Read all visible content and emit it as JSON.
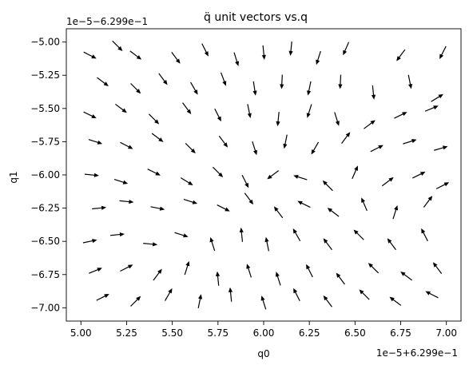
{
  "chart_data": {
    "type": "quiver",
    "title": "q̈ unit vectors vs.q",
    "xlabel": "q0",
    "ylabel": "q1",
    "x_offset_text": "1e−5+6.299e−1",
    "y_offset_text": "1e−5−6.299e−1",
    "xlim": [
      4.92,
      7.08
    ],
    "ylim": [
      -7.1,
      -4.9
    ],
    "x_ticks": [
      5.0,
      5.25,
      5.5,
      5.75,
      6.0,
      6.25,
      6.5,
      6.75,
      7.0
    ],
    "x_tick_labels": [
      "5.00",
      "5.25",
      "5.50",
      "5.75",
      "6.00",
      "6.25",
      "6.50",
      "6.75",
      "7.00"
    ],
    "y_ticks": [
      -5.0,
      -5.25,
      -5.5,
      -5.75,
      -6.0,
      -6.25,
      -6.5,
      -6.75,
      -7.0
    ],
    "y_tick_labels": [
      "−5.00",
      "−5.25",
      "−5.50",
      "−5.75",
      "−6.00",
      "−6.25",
      "−6.50",
      "−6.75",
      "−7.00"
    ],
    "grid": false,
    "legend": "none",
    "arrow_color": "#000000",
    "arrows": [
      {
        "x": 5.05,
        "y": -5.1,
        "u": 0.89,
        "v": -0.45
      },
      {
        "x": 5.2,
        "y": -5.03,
        "u": 0.71,
        "v": -0.71
      },
      {
        "x": 5.3,
        "y": -5.1,
        "u": 0.8,
        "v": -0.6
      },
      {
        "x": 5.52,
        "y": -5.12,
        "u": 0.6,
        "v": -0.8
      },
      {
        "x": 5.68,
        "y": -5.06,
        "u": 0.45,
        "v": -0.89
      },
      {
        "x": 5.85,
        "y": -5.13,
        "u": 0.3,
        "v": -0.95
      },
      {
        "x": 6.0,
        "y": -5.08,
        "u": 0.1,
        "v": -0.99
      },
      {
        "x": 6.15,
        "y": -5.05,
        "u": -0.1,
        "v": -0.99
      },
      {
        "x": 6.3,
        "y": -5.12,
        "u": -0.3,
        "v": -0.95
      },
      {
        "x": 6.45,
        "y": -5.05,
        "u": -0.4,
        "v": -0.92
      },
      {
        "x": 6.75,
        "y": -5.1,
        "u": -0.6,
        "v": -0.8
      },
      {
        "x": 6.98,
        "y": -5.08,
        "u": -0.45,
        "v": -0.89
      },
      {
        "x": 5.12,
        "y": -5.3,
        "u": 0.8,
        "v": -0.6
      },
      {
        "x": 5.3,
        "y": -5.35,
        "u": 0.71,
        "v": -0.71
      },
      {
        "x": 5.45,
        "y": -5.28,
        "u": 0.6,
        "v": -0.8
      },
      {
        "x": 5.62,
        "y": -5.35,
        "u": 0.5,
        "v": -0.87
      },
      {
        "x": 5.78,
        "y": -5.28,
        "u": 0.35,
        "v": -0.94
      },
      {
        "x": 5.95,
        "y": -5.35,
        "u": 0.15,
        "v": -0.99
      },
      {
        "x": 6.1,
        "y": -5.3,
        "u": -0.05,
        "v": -1.0
      },
      {
        "x": 6.25,
        "y": -5.35,
        "u": -0.2,
        "v": -0.98
      },
      {
        "x": 6.42,
        "y": -5.3,
        "u": -0.05,
        "v": -1.0
      },
      {
        "x": 6.6,
        "y": -5.38,
        "u": 0.1,
        "v": -0.99
      },
      {
        "x": 6.8,
        "y": -5.3,
        "u": 0.2,
        "v": -0.98
      },
      {
        "x": 6.95,
        "y": -5.42,
        "u": 0.85,
        "v": 0.52
      },
      {
        "x": 5.05,
        "y": -5.55,
        "u": 0.9,
        "v": -0.44
      },
      {
        "x": 5.22,
        "y": -5.5,
        "u": 0.8,
        "v": -0.6
      },
      {
        "x": 5.4,
        "y": -5.58,
        "u": 0.71,
        "v": -0.71
      },
      {
        "x": 5.58,
        "y": -5.5,
        "u": 0.6,
        "v": -0.8
      },
      {
        "x": 5.75,
        "y": -5.55,
        "u": 0.45,
        "v": -0.89
      },
      {
        "x": 5.92,
        "y": -5.52,
        "u": 0.2,
        "v": -0.98
      },
      {
        "x": 6.08,
        "y": -5.58,
        "u": -0.1,
        "v": -0.99
      },
      {
        "x": 6.25,
        "y": -5.52,
        "u": -0.3,
        "v": -0.95
      },
      {
        "x": 6.4,
        "y": -5.58,
        "u": 0.3,
        "v": -0.95
      },
      {
        "x": 6.58,
        "y": -5.62,
        "u": 0.8,
        "v": 0.6
      },
      {
        "x": 6.75,
        "y": -5.55,
        "u": 0.9,
        "v": 0.44
      },
      {
        "x": 6.92,
        "y": -5.5,
        "u": 0.92,
        "v": 0.38
      },
      {
        "x": 5.08,
        "y": -5.75,
        "u": 0.95,
        "v": -0.3
      },
      {
        "x": 5.25,
        "y": -5.78,
        "u": 0.89,
        "v": -0.45
      },
      {
        "x": 5.42,
        "y": -5.72,
        "u": 0.8,
        "v": -0.6
      },
      {
        "x": 5.6,
        "y": -5.8,
        "u": 0.71,
        "v": -0.71
      },
      {
        "x": 5.78,
        "y": -5.75,
        "u": 0.6,
        "v": -0.8
      },
      {
        "x": 5.95,
        "y": -5.8,
        "u": 0.3,
        "v": -0.95
      },
      {
        "x": 6.12,
        "y": -5.75,
        "u": -0.2,
        "v": -0.98
      },
      {
        "x": 6.28,
        "y": -5.8,
        "u": -0.5,
        "v": -0.87
      },
      {
        "x": 6.45,
        "y": -5.72,
        "u": 0.6,
        "v": 0.8
      },
      {
        "x": 6.62,
        "y": -5.8,
        "u": 0.89,
        "v": 0.45
      },
      {
        "x": 6.8,
        "y": -5.75,
        "u": 0.95,
        "v": 0.3
      },
      {
        "x": 6.97,
        "y": -5.8,
        "u": 0.96,
        "v": 0.28
      },
      {
        "x": 5.06,
        "y": -6.0,
        "u": 0.99,
        "v": -0.1
      },
      {
        "x": 5.22,
        "y": -6.05,
        "u": 0.95,
        "v": -0.3
      },
      {
        "x": 5.4,
        "y": -5.98,
        "u": 0.9,
        "v": -0.44
      },
      {
        "x": 5.58,
        "y": -6.05,
        "u": 0.85,
        "v": -0.52
      },
      {
        "x": 5.75,
        "y": -5.98,
        "u": 0.71,
        "v": -0.71
      },
      {
        "x": 5.9,
        "y": -6.05,
        "u": 0.45,
        "v": -0.89
      },
      {
        "x": 6.05,
        "y": -6.0,
        "u": -0.8,
        "v": -0.6
      },
      {
        "x": 6.2,
        "y": -6.02,
        "u": -0.95,
        "v": 0.3
      },
      {
        "x": 6.35,
        "y": -6.08,
        "u": -0.7,
        "v": 0.71
      },
      {
        "x": 6.5,
        "y": -5.98,
        "u": 0.4,
        "v": 0.92
      },
      {
        "x": 6.68,
        "y": -6.05,
        "u": 0.8,
        "v": 0.6
      },
      {
        "x": 6.85,
        "y": -6.0,
        "u": 0.9,
        "v": 0.44
      },
      {
        "x": 6.98,
        "y": -6.08,
        "u": 0.89,
        "v": 0.45
      },
      {
        "x": 5.1,
        "y": -6.25,
        "u": 0.99,
        "v": 0.1
      },
      {
        "x": 5.25,
        "y": -6.2,
        "u": 0.99,
        "v": -0.1
      },
      {
        "x": 5.42,
        "y": -6.25,
        "u": 0.98,
        "v": -0.2
      },
      {
        "x": 5.6,
        "y": -6.2,
        "u": 0.95,
        "v": -0.3
      },
      {
        "x": 5.78,
        "y": -6.25,
        "u": 0.89,
        "v": -0.45
      },
      {
        "x": 5.92,
        "y": -6.18,
        "u": 0.6,
        "v": -0.8
      },
      {
        "x": 6.08,
        "y": -6.28,
        "u": -0.6,
        "v": 0.8
      },
      {
        "x": 6.22,
        "y": -6.22,
        "u": -0.9,
        "v": 0.44
      },
      {
        "x": 6.38,
        "y": -6.28,
        "u": -0.8,
        "v": 0.6
      },
      {
        "x": 6.55,
        "y": -6.22,
        "u": -0.4,
        "v": 0.92
      },
      {
        "x": 6.72,
        "y": -6.28,
        "u": 0.3,
        "v": 0.95
      },
      {
        "x": 6.9,
        "y": -6.2,
        "u": 0.6,
        "v": 0.8
      },
      {
        "x": 5.05,
        "y": -6.5,
        "u": 0.98,
        "v": 0.2
      },
      {
        "x": 5.2,
        "y": -6.45,
        "u": 0.99,
        "v": 0.1
      },
      {
        "x": 5.38,
        "y": -6.52,
        "u": 0.99,
        "v": -0.1
      },
      {
        "x": 5.55,
        "y": -6.45,
        "u": 0.95,
        "v": -0.3
      },
      {
        "x": 5.72,
        "y": -6.52,
        "u": -0.3,
        "v": 0.95
      },
      {
        "x": 5.88,
        "y": -6.45,
        "u": -0.1,
        "v": 0.99
      },
      {
        "x": 6.02,
        "y": -6.52,
        "u": -0.2,
        "v": 0.98
      },
      {
        "x": 6.18,
        "y": -6.45,
        "u": -0.5,
        "v": 0.87
      },
      {
        "x": 6.35,
        "y": -6.52,
        "u": -0.6,
        "v": 0.8
      },
      {
        "x": 6.52,
        "y": -6.45,
        "u": -0.71,
        "v": 0.71
      },
      {
        "x": 6.7,
        "y": -6.52,
        "u": -0.6,
        "v": 0.8
      },
      {
        "x": 6.88,
        "y": -6.45,
        "u": -0.45,
        "v": 0.89
      },
      {
        "x": 5.08,
        "y": -6.72,
        "u": 0.92,
        "v": 0.38
      },
      {
        "x": 5.25,
        "y": -6.7,
        "u": 0.89,
        "v": 0.45
      },
      {
        "x": 5.42,
        "y": -6.75,
        "u": 0.6,
        "v": 0.8
      },
      {
        "x": 5.58,
        "y": -6.7,
        "u": 0.3,
        "v": 0.95
      },
      {
        "x": 5.75,
        "y": -6.78,
        "u": -0.1,
        "v": 0.99
      },
      {
        "x": 5.92,
        "y": -6.72,
        "u": -0.3,
        "v": 0.95
      },
      {
        "x": 6.08,
        "y": -6.78,
        "u": -0.3,
        "v": 0.95
      },
      {
        "x": 6.25,
        "y": -6.72,
        "u": -0.45,
        "v": 0.89
      },
      {
        "x": 6.42,
        "y": -6.78,
        "u": -0.6,
        "v": 0.8
      },
      {
        "x": 6.6,
        "y": -6.7,
        "u": -0.71,
        "v": 0.71
      },
      {
        "x": 6.78,
        "y": -6.76,
        "u": -0.8,
        "v": 0.6
      },
      {
        "x": 6.95,
        "y": -6.7,
        "u": -0.6,
        "v": 0.8
      },
      {
        "x": 5.12,
        "y": -6.92,
        "u": 0.89,
        "v": 0.45
      },
      {
        "x": 5.3,
        "y": -6.95,
        "u": 0.71,
        "v": 0.71
      },
      {
        "x": 5.48,
        "y": -6.9,
        "u": 0.5,
        "v": 0.87
      },
      {
        "x": 5.65,
        "y": -6.95,
        "u": 0.2,
        "v": 0.98
      },
      {
        "x": 5.82,
        "y": -6.9,
        "u": -0.1,
        "v": 0.99
      },
      {
        "x": 6.0,
        "y": -6.96,
        "u": -0.3,
        "v": 0.95
      },
      {
        "x": 6.18,
        "y": -6.9,
        "u": -0.45,
        "v": 0.89
      },
      {
        "x": 6.35,
        "y": -6.95,
        "u": -0.6,
        "v": 0.8
      },
      {
        "x": 6.55,
        "y": -6.9,
        "u": -0.71,
        "v": 0.71
      },
      {
        "x": 6.72,
        "y": -6.95,
        "u": -0.8,
        "v": 0.6
      },
      {
        "x": 6.92,
        "y": -6.9,
        "u": -0.89,
        "v": 0.45
      }
    ]
  }
}
